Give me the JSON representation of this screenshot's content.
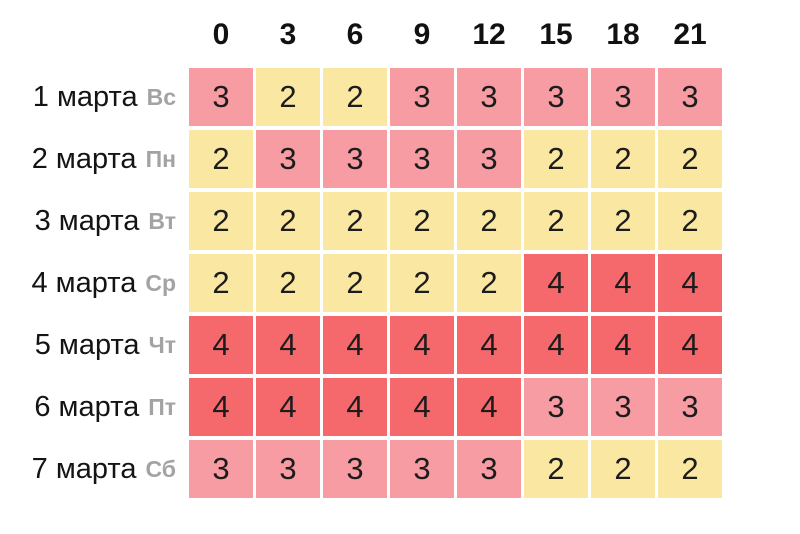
{
  "table": {
    "hour_headers": [
      "0",
      "3",
      "6",
      "9",
      "12",
      "15",
      "18",
      "21"
    ],
    "rows": [
      {
        "date": "1 марта",
        "day": "Вс",
        "values": [
          3,
          2,
          2,
          3,
          3,
          3,
          3,
          3
        ]
      },
      {
        "date": "2 марта",
        "day": "Пн",
        "values": [
          2,
          3,
          3,
          3,
          3,
          2,
          2,
          2
        ]
      },
      {
        "date": "3 марта",
        "day": "Вт",
        "values": [
          2,
          2,
          2,
          2,
          2,
          2,
          2,
          2
        ]
      },
      {
        "date": "4 марта",
        "day": "Ср",
        "values": [
          2,
          2,
          2,
          2,
          2,
          4,
          4,
          4
        ]
      },
      {
        "date": "5 марта",
        "day": "Чт",
        "values": [
          4,
          4,
          4,
          4,
          4,
          4,
          4,
          4
        ]
      },
      {
        "date": "6 марта",
        "day": "Пт",
        "values": [
          4,
          4,
          4,
          4,
          4,
          3,
          3,
          3
        ]
      },
      {
        "date": "7 марта",
        "day": "Сб",
        "values": [
          3,
          3,
          3,
          3,
          3,
          2,
          2,
          2
        ]
      }
    ]
  },
  "chart_data": {
    "type": "heatmap",
    "title": "",
    "x": [
      0,
      3,
      6,
      9,
      12,
      15,
      18,
      21
    ],
    "y": [
      "1 марта Вс",
      "2 марта Пн",
      "3 марта Вт",
      "4 марта Ср",
      "5 марта Чт",
      "6 марта Пт",
      "7 марта Сб"
    ],
    "values": [
      [
        3,
        2,
        2,
        3,
        3,
        3,
        3,
        3
      ],
      [
        2,
        3,
        3,
        3,
        3,
        2,
        2,
        2
      ],
      [
        2,
        2,
        2,
        2,
        2,
        2,
        2,
        2
      ],
      [
        2,
        2,
        2,
        2,
        2,
        4,
        4,
        4
      ],
      [
        4,
        4,
        4,
        4,
        4,
        4,
        4,
        4
      ],
      [
        4,
        4,
        4,
        4,
        4,
        3,
        3,
        3
      ],
      [
        3,
        3,
        3,
        3,
        3,
        2,
        2,
        2
      ]
    ],
    "value_color_map": {
      "2": "#fae8a2",
      "3": "#f79ca3",
      "4": "#f5686c"
    },
    "grid": false,
    "legend": "none"
  },
  "colors": {
    "k2": "#fae8a2",
    "k3": "#f79ca3",
    "k4": "#f5686c",
    "day_label": "#a3a3a3",
    "cell_text": "#1c1c1c",
    "header_text": "#111111",
    "background": "#ffffff"
  }
}
